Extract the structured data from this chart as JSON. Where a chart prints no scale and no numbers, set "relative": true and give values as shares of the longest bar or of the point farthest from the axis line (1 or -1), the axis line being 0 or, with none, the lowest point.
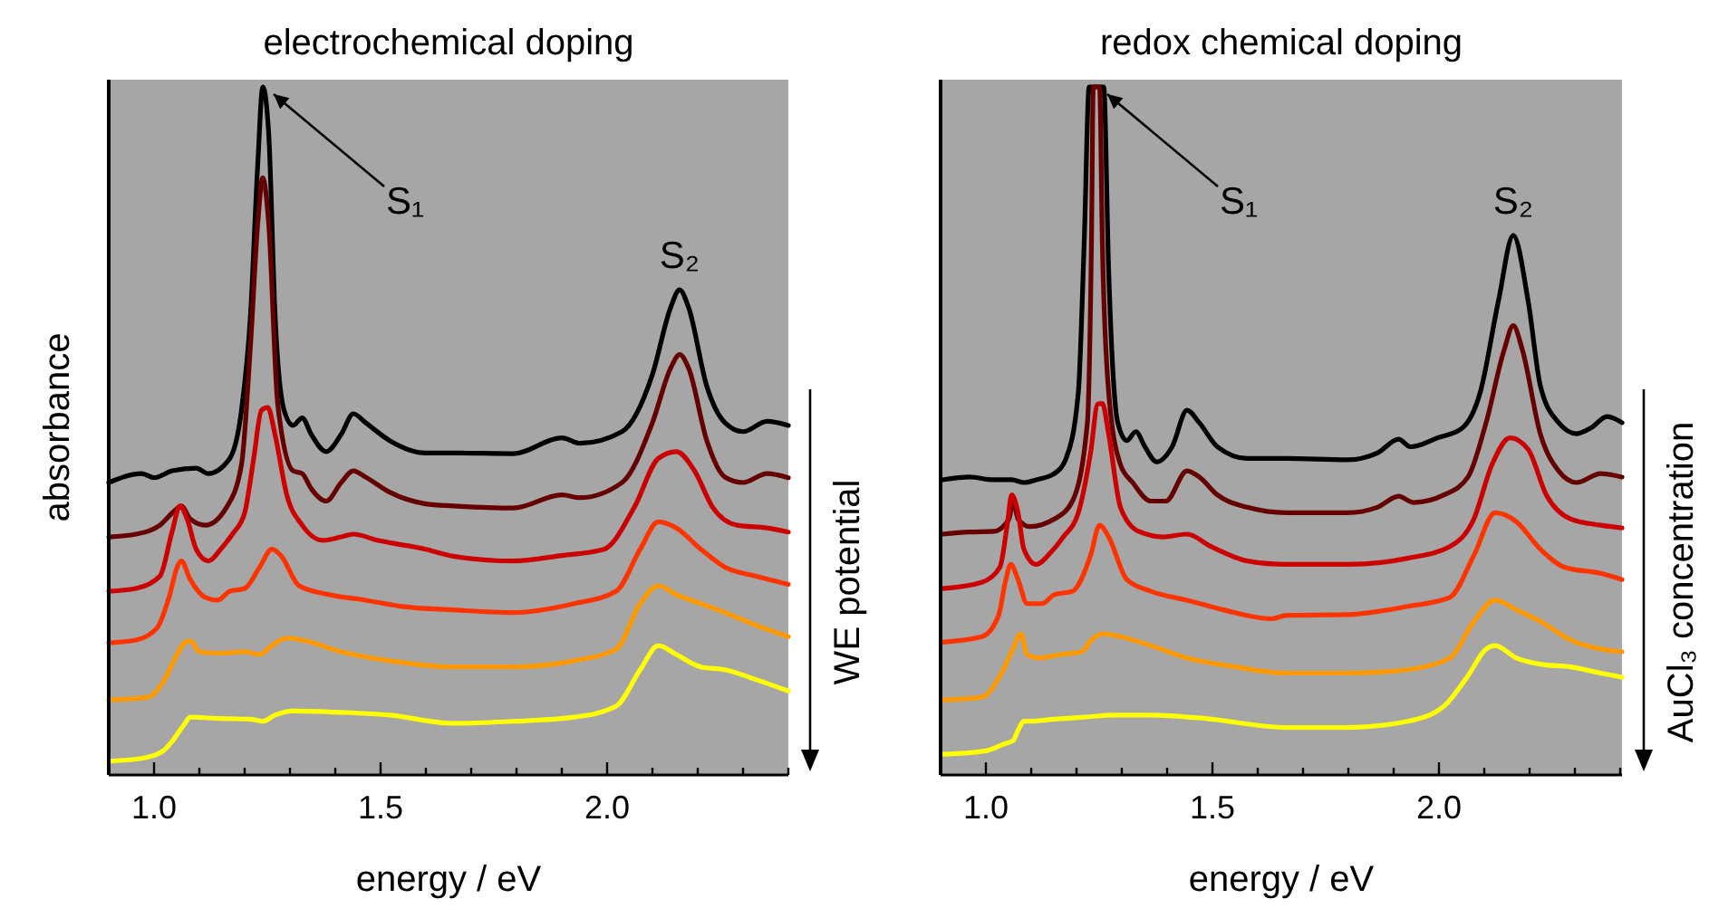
{
  "chart_data": [
    {
      "type": "line",
      "title": "electrochemical doping",
      "xlabel": "energy / eV",
      "ylabel": "absorbance",
      "relative": true,
      "tick_labels": "x",
      "xlim": [
        0.9,
        2.4
      ],
      "xticks": [
        {
          "value": 0.9,
          "label": null
        },
        {
          "value": 1.0,
          "label": "1.0"
        },
        {
          "value": 1.1,
          "label": null
        },
        {
          "value": 1.2,
          "label": null
        },
        {
          "value": 1.3,
          "label": null
        },
        {
          "value": 1.4,
          "label": null
        },
        {
          "value": 1.5,
          "label": "1.5"
        },
        {
          "value": 1.6,
          "label": null
        },
        {
          "value": 1.7,
          "label": null
        },
        {
          "value": 1.8,
          "label": null
        },
        {
          "value": 1.9,
          "label": null
        },
        {
          "value": 2.0,
          "label": "2.0"
        },
        {
          "value": 2.1,
          "label": null
        },
        {
          "value": 2.2,
          "label": null
        },
        {
          "value": 2.3,
          "label": null
        },
        {
          "value": 2.4,
          "label": null
        }
      ],
      "annotations": [
        {
          "text": "S₁",
          "x": 1.24,
          "y": 1
        },
        {
          "text": "S₂",
          "x": 2.16,
          "y": 0.705
        },
        "WE potential"
      ],
      "series": [
        {
          "color": "#000000",
          "x": [
            0.9,
            0.973,
            1.0,
            1.04,
            1.093,
            1.12,
            1.167,
            1.193,
            1.213,
            1.229,
            1.24,
            1.253,
            1.267,
            1.287,
            1.307,
            1.327,
            1.347,
            1.38,
            1.413,
            1.44,
            1.467,
            1.52,
            1.6,
            1.66,
            1.793,
            1.9,
            1.94,
            2.033,
            2.1,
            2.14,
            2.16,
            2.18,
            2.22,
            2.26,
            2.3,
            2.353,
            2.4
          ],
          "values": [
            0.425,
            0.438,
            0.432,
            0.442,
            0.446,
            0.438,
            0.46,
            0.53,
            0.67,
            0.889,
            1,
            0.933,
            0.67,
            0.53,
            0.508,
            0.519,
            0.495,
            0.47,
            0.495,
            0.525,
            0.512,
            0.486,
            0.468,
            0.468,
            0.467,
            0.49,
            0.482,
            0.499,
            0.582,
            0.679,
            0.705,
            0.679,
            0.565,
            0.512,
            0.499,
            0.514,
            0.508
          ]
        },
        {
          "color": "#660000",
          "x": [
            0.9,
            0.96,
            1.013,
            1.047,
            1.06,
            1.08,
            1.113,
            1.16,
            1.193,
            1.213,
            1.229,
            1.24,
            1.253,
            1.273,
            1.307,
            1.327,
            1.347,
            1.38,
            1.413,
            1.44,
            1.467,
            1.52,
            1.6,
            1.66,
            1.793,
            1.9,
            1.94,
            2.033,
            2.1,
            2.14,
            2.16,
            2.18,
            2.22,
            2.26,
            2.3,
            2.353,
            2.4
          ],
          "values": [
            0.346,
            0.35,
            0.363,
            0.385,
            0.391,
            0.372,
            0.363,
            0.389,
            0.451,
            0.626,
            0.802,
            0.868,
            0.802,
            0.539,
            0.442,
            0.438,
            0.416,
            0.398,
            0.425,
            0.442,
            0.433,
            0.411,
            0.394,
            0.391,
            0.388,
            0.407,
            0.403,
            0.425,
            0.512,
            0.591,
            0.611,
            0.591,
            0.486,
            0.433,
            0.425,
            0.438,
            0.432
          ]
        },
        {
          "color": "#cc0000",
          "x": [
            0.9,
            0.96,
            1.013,
            1.04,
            1.057,
            1.073,
            1.093,
            1.12,
            1.147,
            1.173,
            1.2,
            1.22,
            1.237,
            1.251,
            1.267,
            1.293,
            1.327,
            1.373,
            1.413,
            1.44,
            1.493,
            1.6,
            1.66,
            1.793,
            1.9,
            1.993,
            2.06,
            2.113,
            2.153,
            2.193,
            2.233,
            2.287,
            2.353,
            2.4
          ],
          "values": [
            0.267,
            0.271,
            0.289,
            0.354,
            0.391,
            0.372,
            0.328,
            0.311,
            0.328,
            0.35,
            0.381,
            0.46,
            0.53,
            0.534,
            0.495,
            0.407,
            0.363,
            0.341,
            0.346,
            0.35,
            0.341,
            0.328,
            0.318,
            0.311,
            0.319,
            0.328,
            0.389,
            0.46,
            0.47,
            0.442,
            0.389,
            0.363,
            0.359,
            0.353
          ]
        },
        {
          "color": "#ff3300",
          "x": [
            0.9,
            0.96,
            1.007,
            1.033,
            1.051,
            1.06,
            1.08,
            1.113,
            1.14,
            1.167,
            1.2,
            1.233,
            1.26,
            1.28,
            1.32,
            1.387,
            1.467,
            1.547,
            1.66,
            1.793,
            1.927,
            2.02,
            2.073,
            2.113,
            2.153,
            2.207,
            2.26,
            2.327,
            2.4
          ],
          "values": [
            0.192,
            0.196,
            0.214,
            0.258,
            0.302,
            0.311,
            0.284,
            0.258,
            0.254,
            0.267,
            0.271,
            0.302,
            0.328,
            0.319,
            0.275,
            0.262,
            0.254,
            0.245,
            0.24,
            0.236,
            0.249,
            0.267,
            0.328,
            0.368,
            0.359,
            0.328,
            0.302,
            0.289,
            0.277
          ]
        },
        {
          "color": "#ff9900",
          "x": [
            0.9,
            0.987,
            1.02,
            1.047,
            1.067,
            1.08,
            1.1,
            1.147,
            1.2,
            1.233,
            1.26,
            1.293,
            1.333,
            1.413,
            1.52,
            1.66,
            1.793,
            1.927,
            2.02,
            2.073,
            2.113,
            2.153,
            2.207,
            2.26,
            2.327,
            2.4
          ],
          "values": [
            0.109,
            0.113,
            0.135,
            0.17,
            0.192,
            0.195,
            0.179,
            0.177,
            0.179,
            0.175,
            0.188,
            0.199,
            0.195,
            0.179,
            0.166,
            0.157,
            0.157,
            0.166,
            0.183,
            0.249,
            0.275,
            0.262,
            0.249,
            0.236,
            0.218,
            0.201
          ]
        },
        {
          "color": "#ffff00",
          "x": [
            0.9,
            0.98,
            1.02,
            1.04,
            1.067,
            1.08,
            1.147,
            1.213,
            1.24,
            1.267,
            1.307,
            1.413,
            1.52,
            1.66,
            1.793,
            1.927,
            2.02,
            2.073,
            2.113,
            2.153,
            2.207,
            2.26,
            2.327,
            2.4
          ],
          "values": [
            0.02,
            0.025,
            0.035,
            0.049,
            0.074,
            0.084,
            0.082,
            0.081,
            0.078,
            0.087,
            0.093,
            0.091,
            0.087,
            0.075,
            0.078,
            0.084,
            0.1,
            0.153,
            0.188,
            0.175,
            0.157,
            0.153,
            0.139,
            0.122
          ]
        }
      ]
    },
    {
      "type": "line",
      "title": "redox chemical doping",
      "xlabel": "energy / eV",
      "relative": true,
      "tick_labels": "x",
      "xlim": [
        0.9,
        2.404
      ],
      "xticks": [
        {
          "value": 0.9,
          "label": null
        },
        {
          "value": 1.0,
          "label": "1.0"
        },
        {
          "value": 1.1,
          "label": null
        },
        {
          "value": 1.2,
          "label": null
        },
        {
          "value": 1.3,
          "label": null
        },
        {
          "value": 1.4,
          "label": null
        },
        {
          "value": 1.5,
          "label": "1.5"
        },
        {
          "value": 1.6,
          "label": null
        },
        {
          "value": 1.7,
          "label": null
        },
        {
          "value": 1.8,
          "label": null
        },
        {
          "value": 1.9,
          "label": null
        },
        {
          "value": 2.0,
          "label": "2.0"
        },
        {
          "value": 2.1,
          "label": null
        },
        {
          "value": 2.2,
          "label": null
        },
        {
          "value": 2.3,
          "label": null
        },
        {
          "value": 2.4,
          "label": null
        }
      ],
      "annotations": [
        {
          "text": "S₁",
          "x": 1.244,
          "y": 1
        },
        {
          "text": "S₂",
          "x": 2.164,
          "y": 0.784
        },
        "AuCl₃ concentration"
      ],
      "series": [
        {
          "color": "#000000",
          "x": [
            0.904,
            0.964,
            1.017,
            1.057,
            1.084,
            1.111,
            1.151,
            1.177,
            1.204,
            1.217,
            1.228,
            1.244,
            1.26,
            1.271,
            1.291,
            1.311,
            1.331,
            1.351,
            1.377,
            1.411,
            1.444,
            1.471,
            1.511,
            1.577,
            1.664,
            1.797,
            1.864,
            1.911,
            1.937,
            1.997,
            2.051,
            2.091,
            2.131,
            2.164,
            2.197,
            2.224,
            2.264,
            2.304,
            2.337,
            2.371,
            2.404
          ],
          "values": [
            0.429,
            0.433,
            0.429,
            0.429,
            0.425,
            0.429,
            0.438,
            0.46,
            0.556,
            0.775,
            1,
            1,
            1,
            0.732,
            0.512,
            0.486,
            0.499,
            0.477,
            0.455,
            0.477,
            0.53,
            0.512,
            0.477,
            0.46,
            0.46,
            0.458,
            0.468,
            0.488,
            0.477,
            0.49,
            0.504,
            0.556,
            0.688,
            0.784,
            0.688,
            0.565,
            0.512,
            0.496,
            0.505,
            0.521,
            0.512
          ]
        },
        {
          "color": "#660000",
          "x": [
            0.904,
            0.964,
            1.017,
            1.051,
            1.06,
            1.071,
            1.097,
            1.151,
            1.191,
            1.224,
            1.233,
            1.237,
            1.251,
            1.257,
            1.271,
            1.297,
            1.324,
            1.364,
            1.397,
            1.444,
            1.471,
            1.511,
            1.577,
            1.664,
            1.797,
            1.864,
            1.911,
            1.944,
            2.011,
            2.064,
            2.104,
            2.144,
            2.164,
            2.184,
            2.224,
            2.264,
            2.304,
            2.357,
            2.404
          ],
          "values": [
            0.35,
            0.353,
            0.354,
            0.372,
            0.398,
            0.372,
            0.361,
            0.372,
            0.398,
            0.512,
            0.775,
            1,
            1,
            0.775,
            0.556,
            0.451,
            0.425,
            0.398,
            0.398,
            0.442,
            0.433,
            0.407,
            0.389,
            0.381,
            0.381,
            0.389,
            0.405,
            0.396,
            0.407,
            0.433,
            0.512,
            0.618,
            0.653,
            0.618,
            0.495,
            0.442,
            0.425,
            0.438,
            0.433
          ]
        },
        {
          "color": "#cc0000",
          "x": [
            0.904,
            0.991,
            1.031,
            1.047,
            1.057,
            1.071,
            1.084,
            1.111,
            1.144,
            1.171,
            1.204,
            1.231,
            1.247,
            1.257,
            1.271,
            1.297,
            1.337,
            1.391,
            1.444,
            1.497,
            1.577,
            1.664,
            1.797,
            1.931,
            2.024,
            2.077,
            2.117,
            2.157,
            2.197,
            2.237,
            2.291,
            2.357,
            2.404
          ],
          "values": [
            0.271,
            0.28,
            0.302,
            0.363,
            0.407,
            0.381,
            0.328,
            0.306,
            0.324,
            0.346,
            0.381,
            0.468,
            0.539,
            0.54,
            0.495,
            0.389,
            0.354,
            0.346,
            0.35,
            0.332,
            0.311,
            0.306,
            0.306,
            0.315,
            0.332,
            0.372,
            0.451,
            0.49,
            0.473,
            0.407,
            0.372,
            0.363,
            0.359
          ]
        },
        {
          "color": "#ff3300",
          "x": [
            0.904,
            0.991,
            1.028,
            1.044,
            1.055,
            1.071,
            1.091,
            1.124,
            1.151,
            1.191,
            1.231,
            1.251,
            1.271,
            1.311,
            1.364,
            1.444,
            1.524,
            1.631,
            1.664,
            1.797,
            1.931,
            2.024,
            2.077,
            2.124,
            2.171,
            2.224,
            2.277,
            2.357,
            2.404
          ],
          "values": [
            0.193,
            0.201,
            0.232,
            0.284,
            0.306,
            0.284,
            0.249,
            0.249,
            0.262,
            0.267,
            0.319,
            0.363,
            0.346,
            0.284,
            0.267,
            0.254,
            0.24,
            0.227,
            0.232,
            0.233,
            0.245,
            0.258,
            0.319,
            0.381,
            0.368,
            0.328,
            0.302,
            0.293,
            0.284
          ]
        },
        {
          "color": "#ff9900",
          "x": [
            0.904,
            0.991,
            1.031,
            1.057,
            1.077,
            1.091,
            1.117,
            1.164,
            1.211,
            1.233,
            1.257,
            1.297,
            1.364,
            1.444,
            1.551,
            1.664,
            1.797,
            1.931,
            2.024,
            2.077,
            2.124,
            2.171,
            2.224,
            2.291,
            2.357,
            2.404
          ],
          "values": [
            0.109,
            0.113,
            0.144,
            0.179,
            0.205,
            0.175,
            0.17,
            0.175,
            0.179,
            0.196,
            0.205,
            0.201,
            0.188,
            0.17,
            0.157,
            0.148,
            0.148,
            0.153,
            0.17,
            0.223,
            0.254,
            0.24,
            0.223,
            0.196,
            0.183,
            0.179
          ]
        },
        {
          "color": "#ffff00",
          "x": [
            0.904,
            1.0,
            1.04,
            1.06,
            1.071,
            1.084,
            1.097,
            1.151,
            1.217,
            1.284,
            1.364,
            1.484,
            1.664,
            1.797,
            1.931,
            2.011,
            2.064,
            2.104,
            2.124,
            2.171,
            2.224,
            2.291,
            2.357,
            2.404
          ],
          "values": [
            0.03,
            0.035,
            0.045,
            0.05,
            0.065,
            0.078,
            0.078,
            0.081,
            0.084,
            0.087,
            0.087,
            0.082,
            0.069,
            0.069,
            0.078,
            0.1,
            0.144,
            0.183,
            0.188,
            0.17,
            0.161,
            0.157,
            0.148,
            0.142
          ]
        }
      ]
    }
  ]
}
